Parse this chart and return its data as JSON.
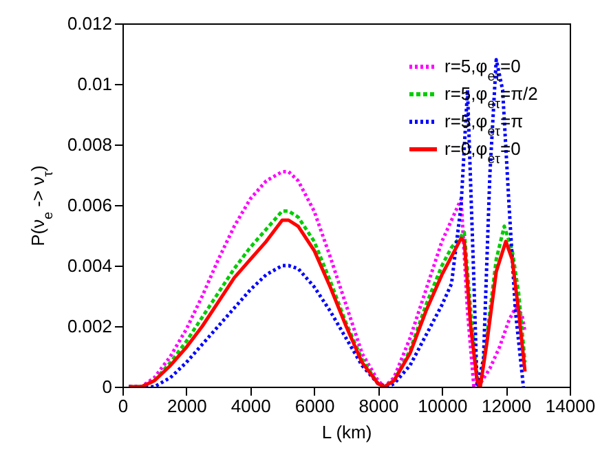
{
  "chart_data": {
    "type": "line",
    "xlabel": "L (km)",
    "ylabel": "P(ν$_{e}$ -> ν$_{τ}$)",
    "xlim": [
      0,
      14000
    ],
    "ylim": [
      0,
      0.012
    ],
    "xticks": [
      0,
      2000,
      4000,
      6000,
      8000,
      10000,
      12000,
      14000
    ],
    "yticks": [
      0,
      0.002,
      0.004,
      0.006,
      0.008,
      0.01,
      0.012
    ],
    "legend": "top right",
    "grid": false,
    "series": [
      {
        "name": "r=5,φ$_{eτ}$=0",
        "color": "#ff00ff",
        "line_style": "dotted",
        "x": [
          200,
          600,
          1000,
          1500,
          2000,
          2500,
          3000,
          3500,
          4000,
          4500,
          5000,
          5200,
          5500,
          6000,
          6500,
          7000,
          7500,
          8000,
          8200,
          8500,
          9000,
          9500,
          10000,
          10300,
          10600,
          10800,
          11000,
          11200,
          11500,
          11800,
          12100,
          12300,
          12500,
          12600
        ],
        "values": [
          0,
          0,
          0.0003,
          0.001,
          0.0019,
          0.003,
          0.0042,
          0.0053,
          0.0062,
          0.0068,
          0.0071,
          0.0071,
          0.0068,
          0.0058,
          0.0043,
          0.0027,
          0.0011,
          0.0002,
          0,
          0.0003,
          0.0016,
          0.0032,
          0.0048,
          0.0055,
          0.0062,
          0.0025,
          0,
          0.0001,
          0.0006,
          0.0013,
          0.0022,
          0.0026,
          0.0024,
          0.0018
        ]
      },
      {
        "name": "r=5,φ$_{eτ}$=π/2",
        "color": "#00cc00",
        "line_style": "dashed",
        "x": [
          200,
          600,
          1000,
          1500,
          2000,
          2500,
          3000,
          3500,
          4000,
          4500,
          5000,
          5200,
          5500,
          6000,
          6500,
          7000,
          7500,
          8000,
          8200,
          8500,
          9000,
          9500,
          10000,
          10300,
          10700,
          10900,
          11100,
          11200,
          11400,
          11700,
          11950,
          12200,
          12400,
          12600
        ],
        "values": [
          0,
          0,
          0.0002,
          0.0008,
          0.0015,
          0.0023,
          0.0031,
          0.0039,
          0.0046,
          0.0052,
          0.0058,
          0.0058,
          0.0056,
          0.0048,
          0.0035,
          0.0021,
          0.0009,
          0.0001,
          0,
          0.0002,
          0.0012,
          0.0027,
          0.004,
          0.0046,
          0.0051,
          0.0025,
          0.0003,
          0,
          0.0016,
          0.0042,
          0.0053,
          0.0045,
          0.0031,
          0.0008
        ]
      },
      {
        "name": "r=5,φ$_{eτ}$=π",
        "color": "#0000ff",
        "line_style": "dotted",
        "x": [
          200,
          600,
          1000,
          1500,
          2000,
          2500,
          3000,
          3500,
          4000,
          4500,
          5000,
          5200,
          5500,
          6000,
          6500,
          7000,
          7500,
          8000,
          8300,
          8500,
          9000,
          9500,
          10000,
          10300,
          10600,
          10800,
          11000,
          11100,
          11300,
          11500,
          11700,
          11900,
          12100,
          12300,
          12550
        ],
        "values": [
          0,
          0,
          0,
          0.0003,
          0.0008,
          0.0014,
          0.002,
          0.0026,
          0.0032,
          0.0037,
          0.004,
          0.004,
          0.0039,
          0.0033,
          0.0025,
          0.0016,
          0.0007,
          0.0001,
          0,
          0.0001,
          0.0007,
          0.0017,
          0.0027,
          0.0034,
          0.006,
          0.0098,
          0.0035,
          0,
          0.0009,
          0.007,
          0.0108,
          0.0098,
          0.006,
          0.0025,
          0
        ]
      },
      {
        "name": "r=0,φ$_{eτ}$=0",
        "color": "#ff0000",
        "line_style": "solid",
        "x": [
          200,
          600,
          1000,
          1500,
          2000,
          2500,
          3000,
          3500,
          4000,
          4500,
          5000,
          5200,
          5500,
          6000,
          6500,
          7000,
          7500,
          8000,
          8200,
          8500,
          9000,
          9500,
          10000,
          10300,
          10600,
          10700,
          10900,
          11100,
          11200,
          11400,
          11700,
          12000,
          12200,
          12400,
          12600
        ],
        "values": [
          0,
          0,
          0.0002,
          0.0007,
          0.0013,
          0.002,
          0.0028,
          0.0036,
          0.0042,
          0.0048,
          0.0055,
          0.0055,
          0.0053,
          0.0045,
          0.0033,
          0.002,
          0.0008,
          0.0001,
          0,
          0.0002,
          0.0011,
          0.0025,
          0.0037,
          0.0043,
          0.0049,
          0.0048,
          0.002,
          0.0002,
          0,
          0.0014,
          0.0038,
          0.0048,
          0.0042,
          0.0025,
          0.0005
        ]
      }
    ]
  }
}
